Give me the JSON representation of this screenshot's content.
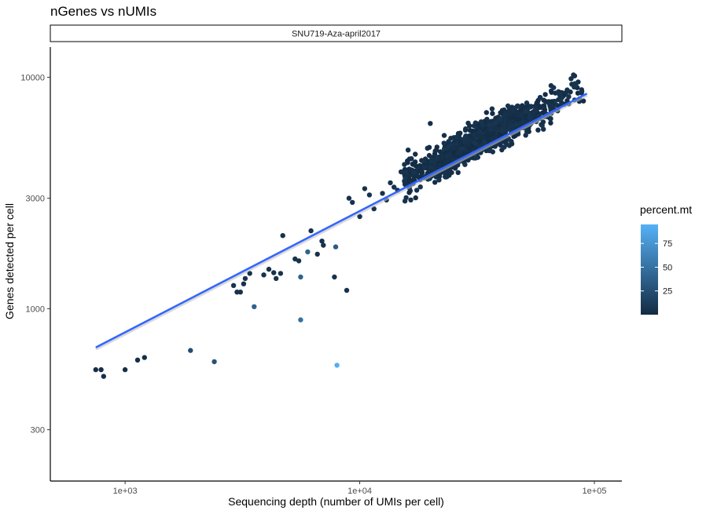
{
  "chart_data": {
    "type": "scatter",
    "title": "nGenes vs nUMIs",
    "facet_label": "SNU719-Aza-april2017",
    "xlabel": "Sequencing depth (number of UMIs per cell)",
    "ylabel": "Genes detected per cell",
    "x_scale": "log10",
    "y_scale": "log10",
    "xlim": [
      480,
      131000
    ],
    "ylim": [
      180,
      13500
    ],
    "x_ticks": [
      1000,
      10000,
      100000
    ],
    "x_tick_labels": [
      "1e+03",
      "1e+04",
      "1e+05"
    ],
    "y_ticks": [
      300,
      1000,
      3000,
      10000
    ],
    "y_tick_labels": [
      "300",
      "1000",
      "3000",
      "10000"
    ],
    "grid": false,
    "legend": {
      "title": "percent.mt",
      "position": "right",
      "breaks": [
        25,
        50,
        75
      ],
      "break_labels": [
        "25",
        "50",
        "75"
      ],
      "range": [
        0,
        95
      ],
      "low_color": "#132B43",
      "high_color": "#56B1F7"
    },
    "fit_line": {
      "color": "#3366FF",
      "points": [
        [
          750,
          680
        ],
        [
          93000,
          8500
        ]
      ]
    },
    "cluster": {
      "description_count": 1200,
      "x_range": [
        15500,
        90000
      ],
      "y_center_at_x_1e4": 2900,
      "trend_slope": 0.52,
      "percent_mt_range": [
        0,
        12
      ]
    },
    "points": [
      [
        750,
        545,
        3
      ],
      [
        790,
        545,
        3
      ],
      [
        810,
        510,
        3
      ],
      [
        1000,
        545,
        3
      ],
      [
        1130,
        600,
        3
      ],
      [
        1210,
        615,
        3
      ],
      [
        1900,
        660,
        25
      ],
      [
        2400,
        590,
        28
      ],
      [
        2900,
        1260,
        5
      ],
      [
        3000,
        1180,
        5
      ],
      [
        3100,
        1180,
        5
      ],
      [
        3200,
        1280,
        5
      ],
      [
        3250,
        1350,
        5
      ],
      [
        3400,
        1420,
        5
      ],
      [
        3550,
        1020,
        40
      ],
      [
        3900,
        1400,
        5
      ],
      [
        4100,
        1480,
        5
      ],
      [
        4300,
        1430,
        5
      ],
      [
        4400,
        1350,
        5
      ],
      [
        4600,
        1420,
        5
      ],
      [
        4700,
        2070,
        5
      ],
      [
        5300,
        1640,
        5
      ],
      [
        5500,
        1610,
        5
      ],
      [
        5600,
        1370,
        40
      ],
      [
        5600,
        895,
        50
      ],
      [
        6000,
        1760,
        40
      ],
      [
        6200,
        2170,
        5
      ],
      [
        6600,
        1720,
        5
      ],
      [
        6900,
        1960,
        5
      ],
      [
        7000,
        1880,
        5
      ],
      [
        7800,
        1370,
        5
      ],
      [
        7900,
        1850,
        35
      ],
      [
        8000,
        570,
        92
      ],
      [
        8800,
        1200,
        5
      ],
      [
        9000,
        3000,
        5
      ],
      [
        9300,
        2880,
        5
      ],
      [
        10000,
        2500,
        5
      ],
      [
        10500,
        3300,
        5
      ],
      [
        11000,
        3100,
        5
      ],
      [
        11500,
        2700,
        5
      ],
      [
        12500,
        3150,
        5
      ],
      [
        13000,
        2950,
        5
      ],
      [
        13500,
        3500,
        5
      ],
      [
        14000,
        3350,
        5
      ],
      [
        14500,
        3250,
        5
      ],
      [
        15000,
        3900,
        5
      ],
      [
        15500,
        4200,
        5
      ],
      [
        16500,
        2950,
        5
      ],
      [
        17500,
        3250,
        5
      ]
    ]
  }
}
